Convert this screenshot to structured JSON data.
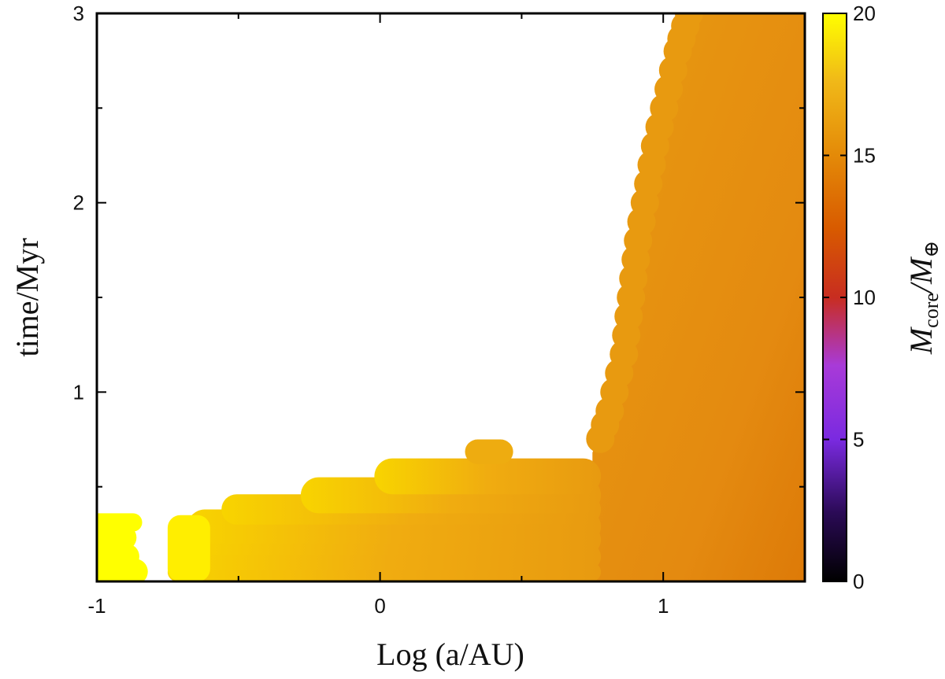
{
  "chart_data": {
    "type": "heatmap",
    "title": "",
    "xlabel": "Log (a/AU)",
    "ylabel": "time/Myr",
    "xlim": [
      -1,
      1.5
    ],
    "ylim": [
      0,
      3
    ],
    "x_ticks": [
      {
        "value": -1,
        "label": "-1"
      },
      {
        "value": 0,
        "label": "0"
      },
      {
        "value": 1,
        "label": "1"
      }
    ],
    "x_minor_ticks": [
      -0.5,
      0.5
    ],
    "y_ticks": [
      {
        "value": 1,
        "label": "1"
      },
      {
        "value": 2,
        "label": "2"
      },
      {
        "value": 3,
        "label": "3"
      }
    ],
    "y_minor_ticks": [
      0.5,
      1.5,
      2.5
    ],
    "colorbar": {
      "label_main": "M",
      "label_sub": "core",
      "label_slash": "/M",
      "label_sub2": "⊕",
      "range": [
        0,
        20
      ],
      "ticks": [
        {
          "value": 0,
          "label": "0"
        },
        {
          "value": 5,
          "label": "5"
        },
        {
          "value": 10,
          "label": "10"
        },
        {
          "value": 15,
          "label": "15"
        },
        {
          "value": 20,
          "label": "20"
        }
      ],
      "colorscale": [
        "#000000",
        "#3a0a6a",
        "#8a2be2",
        "#b035b0",
        "#cc3300",
        "#e06a00",
        "#f0a010",
        "#ffff00"
      ]
    },
    "regions": [
      {
        "name": "inner-yellow-blob",
        "m_core": 20,
        "x_range": [
          -1.0,
          -0.82
        ],
        "t_range": [
          0.0,
          0.35
        ]
      },
      {
        "name": "staircase-low-a",
        "m_core": 17.5,
        "x_range": [
          -0.75,
          0.75
        ],
        "t_range": [
          0.0,
          0.68
        ]
      },
      {
        "name": "bump",
        "m_core": 17,
        "x_range": [
          0.3,
          0.47
        ],
        "t_range": [
          0.62,
          0.75
        ]
      },
      {
        "name": "outer-band",
        "m_core": 15.5,
        "x_range": [
          0.75,
          1.5
        ],
        "t_range": [
          0.0,
          3.0
        ]
      }
    ],
    "grid": false,
    "legend": "colorbar-right"
  }
}
